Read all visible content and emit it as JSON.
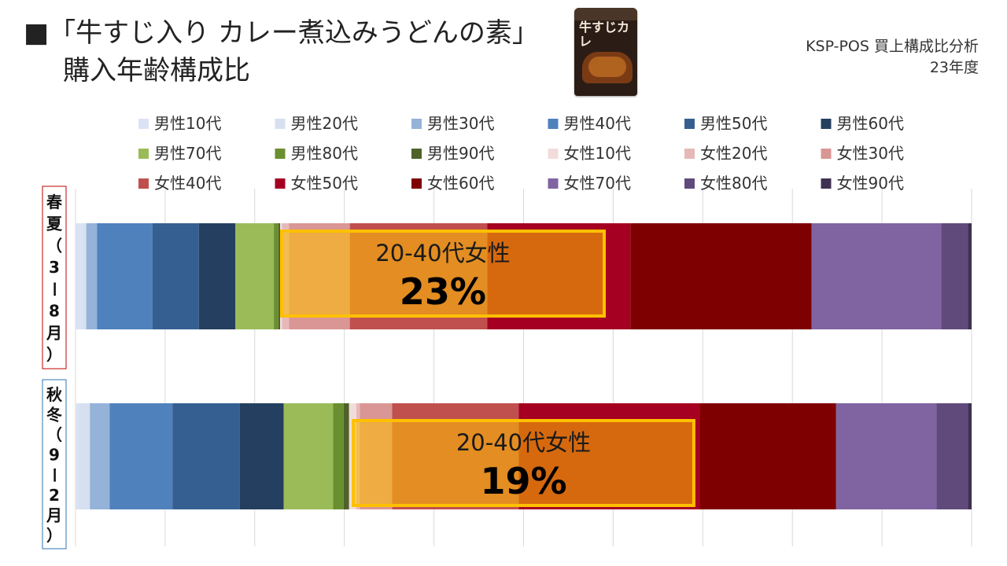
{
  "title": {
    "line1": "■「牛すじ入り カレー煮込みうどんの素」",
    "line2": "購入年齢構成比"
  },
  "product_image": {
    "package_text": "牛すじカレ"
  },
  "source": {
    "line1": "KSP-POS 買上構成比分析",
    "line2": "23年度"
  },
  "chart_data": {
    "type": "bar",
    "stacked": true,
    "orientation": "horizontal",
    "normalized_percent": true,
    "xlim": [
      0,
      100
    ],
    "grid": true,
    "legend_position": "top",
    "categories": [
      "春夏（3ー8月）",
      "秋冬（9ー2月）"
    ],
    "series": [
      {
        "name": "男性10代",
        "color": "#dae3f3",
        "values": [
          0.8,
          0.3
        ]
      },
      {
        "name": "男性20代",
        "color": "#d6e0f0",
        "values": [
          0.4,
          1.3
        ]
      },
      {
        "name": "男性30代",
        "color": "#95b2d9",
        "values": [
          1.2,
          2.2
        ]
      },
      {
        "name": "男性40代",
        "color": "#4f81bd",
        "values": [
          6.2,
          7.0
        ]
      },
      {
        "name": "男性50代",
        "color": "#355f91",
        "values": [
          5.2,
          7.5
        ]
      },
      {
        "name": "男性60代",
        "color": "#243f60",
        "values": [
          4.1,
          4.9
        ]
      },
      {
        "name": "男性70代",
        "color": "#9bbb59",
        "values": [
          4.3,
          5.5
        ]
      },
      {
        "name": "男性80代",
        "color": "#6a8f30",
        "values": [
          0.5,
          1.2
        ]
      },
      {
        "name": "男性90代",
        "color": "#4f6228",
        "values": [
          0.2,
          0.6
        ]
      },
      {
        "name": "女性10代",
        "color": "#f2dcdb",
        "values": [
          0.2,
          0.8
        ]
      },
      {
        "name": "女性20代",
        "color": "#e6b9b8",
        "values": [
          0.8,
          0.4
        ]
      },
      {
        "name": "女性30代",
        "color": "#d99694",
        "values": [
          6.8,
          3.6
        ]
      },
      {
        "name": "女性40代",
        "color": "#c0504d",
        "values": [
          15.4,
          14.1
        ]
      },
      {
        "name": "女性50代",
        "color": "#a50021",
        "values": [
          16.0,
          20.2
        ]
      },
      {
        "name": "女性60代",
        "color": "#7f0000",
        "values": [
          20.3,
          15.2
        ]
      },
      {
        "name": "女性70代",
        "color": "#8064a2",
        "values": [
          14.5,
          11.2
        ]
      },
      {
        "name": "女性80代",
        "color": "#604a7b",
        "values": [
          3.0,
          3.5
        ]
      },
      {
        "name": "女性90代",
        "color": "#3f3151",
        "values": [
          0.4,
          0.4
        ]
      }
    ],
    "annotations": [
      {
        "row": 0,
        "label": "20-40代女性",
        "value": "23%",
        "x_range": [
          23,
          59
        ]
      },
      {
        "row": 1,
        "label": "20-40代女性",
        "value": "19%",
        "x_range": [
          31,
          69
        ]
      }
    ]
  }
}
